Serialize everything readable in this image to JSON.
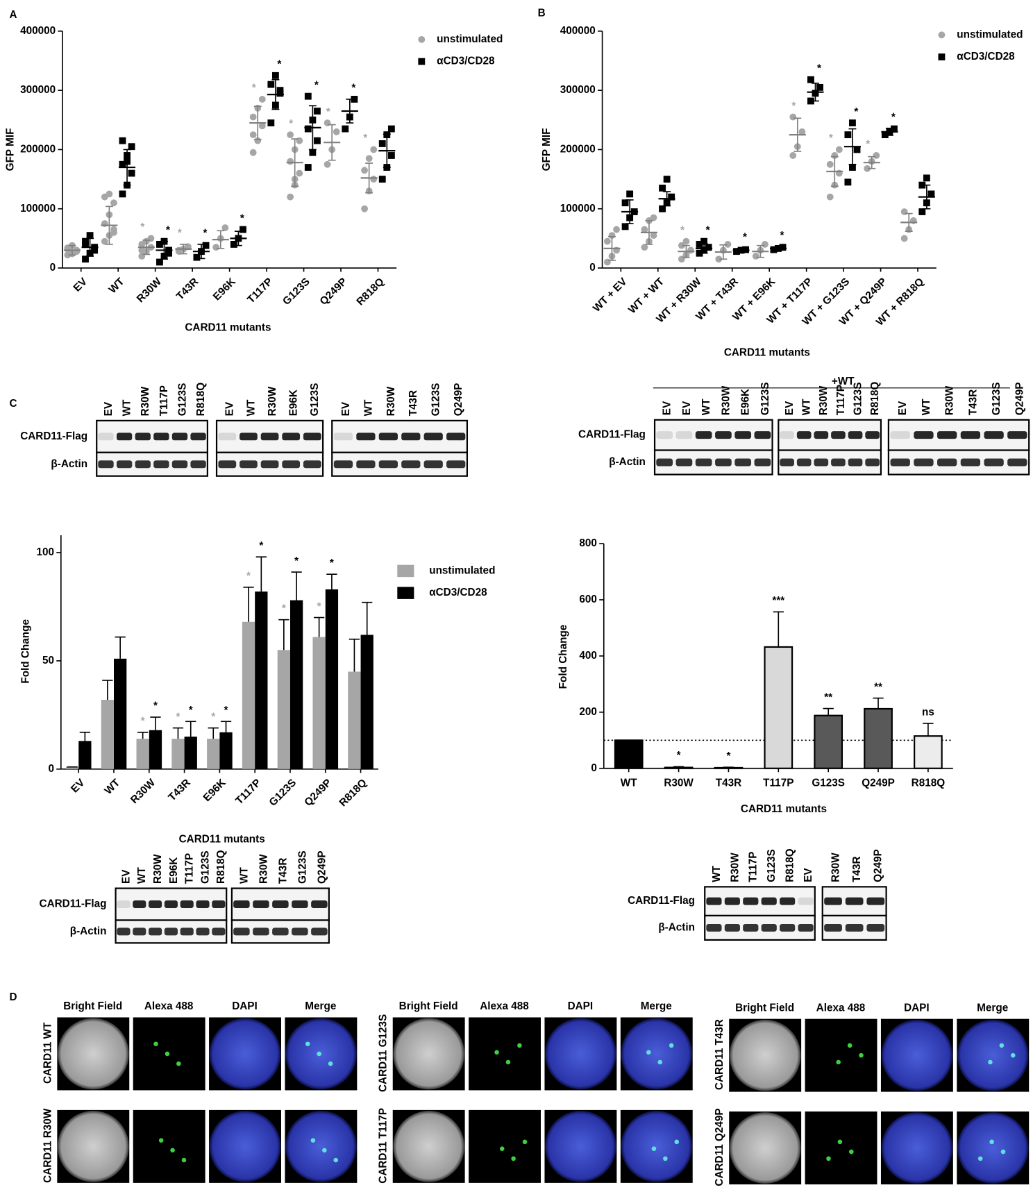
{
  "panel_labels": [
    "A",
    "B",
    "C",
    "D"
  ],
  "chart_data": [
    {
      "type": "dotplot",
      "ylabel": "GFP MIF",
      "xlabel": "CARD11 mutants",
      "categories": [
        "EV",
        "WT",
        "R30W",
        "T43R",
        "E96K",
        "T117P",
        "G123S",
        "Q249P",
        "R818Q"
      ],
      "ylim": [
        0,
        400000
      ],
      "yticks": [
        0,
        100000,
        200000,
        300000,
        400000
      ],
      "series": [
        {
          "name": "unstimulated",
          "color": "#a6a6a6",
          "values": [
            30000,
            72000,
            35000,
            32000,
            48000,
            245000,
            178000,
            212000,
            152000
          ],
          "errors": [
            8000,
            32000,
            12000,
            8000,
            15000,
            28000,
            40000,
            30000,
            25000
          ],
          "significance": [
            null,
            null,
            "*",
            "*",
            null,
            "*",
            "*",
            "*",
            "*"
          ],
          "points": [
            [
              22000,
              26000,
              30000,
              34000,
              38000,
              28000,
              32000,
              24000
            ],
            [
              45000,
              55000,
              65000,
              75000,
              90000,
              110000,
              120000,
              125000,
              60000
            ],
            [
              20000,
              28000,
              35000,
              40000,
              45000,
              50000,
              30000
            ],
            [
              28000,
              32000,
              36000,
              30000
            ],
            [
              35000,
              50000,
              68000
            ],
            [
              195000,
              215000,
              240000,
              255000,
              270000,
              285000,
              225000
            ],
            [
              120000,
              140000,
              160000,
              180000,
              200000,
              215000,
              225000,
              150000
            ],
            [
              175000,
              200000,
              230000,
              245000
            ],
            [
              100000,
              130000,
              150000,
              165000,
              185000,
              200000
            ]
          ]
        },
        {
          "name": "αCD3/CD28",
          "color": "#000000",
          "values": [
            35000,
            170000,
            30000,
            28000,
            50000,
            293000,
            237000,
            265000,
            198000
          ],
          "errors": [
            15000,
            30000,
            15000,
            12000,
            12000,
            25000,
            37000,
            20000,
            28000
          ],
          "significance": [
            null,
            null,
            "*",
            "*",
            "*",
            "*",
            "*",
            "*",
            null
          ],
          "points": [
            [
              15000,
              25000,
              35000,
              45000,
              55000,
              30000,
              40000
            ],
            [
              125000,
              140000,
              160000,
              175000,
              190000,
              205000,
              215000,
              180000
            ],
            [
              10000,
              20000,
              30000,
              40000,
              45000,
              25000
            ],
            [
              18000,
              28000,
              38000
            ],
            [
              40000,
              50000,
              65000
            ],
            [
              245000,
              275000,
              295000,
              310000,
              325000,
              300000
            ],
            [
              170000,
              195000,
              215000,
              235000,
              250000,
              265000,
              290000
            ],
            [
              235000,
              255000,
              285000
            ],
            [
              150000,
              170000,
              190000,
              210000,
              225000,
              235000
            ]
          ]
        }
      ]
    },
    {
      "type": "dotplot",
      "ylabel": "GFP MIF",
      "xlabel": "CARD11 mutants",
      "categories": [
        "WT + EV",
        "WT + WT",
        "WT + R30W",
        "WT + T43R",
        "WT + E96K",
        "WT + T117P",
        "WT + G123S",
        "WT + Q249P",
        "WT + R818Q"
      ],
      "ylim": [
        0,
        400000
      ],
      "yticks": [
        0,
        100000,
        200000,
        300000,
        400000
      ],
      "series": [
        {
          "name": "unstimulated",
          "color": "#a6a6a6",
          "values": [
            33000,
            60000,
            28000,
            27000,
            28000,
            225000,
            163000,
            178000,
            77000
          ],
          "errors": [
            20000,
            20000,
            10000,
            12000,
            10000,
            28000,
            25000,
            10000,
            15000
          ],
          "significance": [
            null,
            null,
            "*",
            null,
            null,
            "*",
            "*",
            "*",
            null
          ],
          "points": [
            [
              10000,
              20000,
              30000,
              45000,
              55000,
              65000
            ],
            [
              35000,
              45000,
              55000,
              65000,
              80000,
              85000
            ],
            [
              15000,
              22000,
              30000,
              38000,
              45000
            ],
            [
              15000,
              30000,
              40000
            ],
            [
              20000,
              30000,
              40000
            ],
            [
              190000,
              205000,
              230000,
              255000
            ],
            [
              120000,
              140000,
              160000,
              175000,
              190000,
              200000
            ],
            [
              168000,
              180000,
              190000
            ],
            [
              50000,
              65000,
              80000,
              95000
            ]
          ]
        },
        {
          "name": "αCD3/CD28",
          "color": "#000000",
          "values": [
            95000,
            117000,
            33000,
            30000,
            33000,
            297000,
            205000,
            230000,
            120000
          ],
          "errors": [
            20000,
            12000,
            8000,
            3000,
            3000,
            15000,
            30000,
            6000,
            20000
          ],
          "significance": [
            null,
            null,
            "*",
            "*",
            "*",
            "*",
            "*",
            "*",
            null
          ],
          "points": [
            [
              70000,
              85000,
              95000,
              110000,
              125000
            ],
            [
              100000,
              110000,
              120000,
              135000,
              150000
            ],
            [
              25000,
              30000,
              35000,
              40000,
              45000
            ],
            [
              28000,
              30000,
              31000
            ],
            [
              31000,
              33000,
              35000
            ],
            [
              282000,
              295000,
              305000,
              318000
            ],
            [
              145000,
              170000,
              200000,
              225000,
              245000
            ],
            [
              225000,
              230000,
              235000
            ],
            [
              95000,
              110000,
              125000,
              140000,
              152000
            ]
          ]
        }
      ]
    },
    {
      "type": "bar",
      "ylabel": "Fold Change",
      "xlabel": "CARD11 mutants",
      "categories": [
        "EV",
        "WT",
        "R30W",
        "T43R",
        "E96K",
        "T117P",
        "G123S",
        "Q249P",
        "R818Q"
      ],
      "ylim": [
        0,
        108
      ],
      "yticks": [
        0,
        50,
        100
      ],
      "series": [
        {
          "name": "unstimulated",
          "color": "#a6a6a6",
          "values": [
            1,
            32,
            14,
            14,
            14,
            68,
            55,
            61,
            45
          ],
          "errors": [
            0,
            9,
            3,
            5,
            5,
            16,
            14,
            9,
            15
          ],
          "significance": [
            null,
            null,
            "*",
            "*",
            "*",
            "*",
            "*",
            "*",
            null
          ]
        },
        {
          "name": "αCD3/CD28",
          "color": "#000000",
          "values": [
            13,
            51,
            18,
            15,
            17,
            82,
            78,
            83,
            62
          ],
          "errors": [
            4,
            10,
            6,
            7,
            5,
            16,
            13,
            7,
            15
          ],
          "significance": [
            null,
            null,
            "*",
            "*",
            "*",
            "*",
            "*",
            "*",
            null
          ]
        }
      ]
    },
    {
      "type": "bar",
      "ylabel": "Fold Change",
      "xlabel": "CARD11 mutants",
      "categories": [
        "WT",
        "R30W",
        "T43R",
        "T117P",
        "G123S",
        "Q249P",
        "R818Q"
      ],
      "ylim": [
        0,
        800
      ],
      "yticks": [
        0,
        200,
        400,
        600,
        800
      ],
      "reference_line": 100,
      "series": [
        {
          "values": [
            100,
            3,
            2,
            432,
            188,
            212,
            115
          ],
          "errors": [
            0,
            3,
            2,
            125,
            25,
            38,
            45
          ],
          "colors": [
            "#000000",
            "#000000",
            "#000000",
            "#d9d9d9",
            "#595959",
            "#595959",
            "#ececec"
          ],
          "significance": [
            null,
            "*",
            "*",
            "***",
            "**",
            "**",
            "ns"
          ]
        }
      ]
    }
  ],
  "blots": [
    {
      "rows": [
        "CARD11-Flag",
        "β-Actin"
      ],
      "groups": [
        [
          "EV",
          "WT",
          "R30W",
          "T117P",
          "G123S",
          "R818Q"
        ],
        [
          "EV",
          "WT",
          "R30W",
          "E96K",
          "G123S"
        ],
        [
          "EV",
          "WT",
          "R30W",
          "T43R",
          "G123S",
          "Q249P"
        ]
      ]
    },
    {
      "header": "+WT",
      "rows": [
        "CARD11-Flag",
        "β-Actin"
      ],
      "groups": [
        [
          "EV",
          "EV",
          "WT",
          "R30W",
          "E96K",
          "G123S"
        ],
        [
          "EV",
          "WT",
          "R30W",
          "T117P",
          "G123S",
          "R818Q"
        ],
        [
          "EV",
          "WT",
          "R30W",
          "T43R",
          "G123S",
          "Q249P"
        ]
      ]
    },
    {
      "rows": [
        "CARD11-Flag",
        "β-Actin"
      ],
      "groups": [
        [
          "EV",
          "WT",
          "R30W",
          "E96K",
          "T117P",
          "G123S",
          "R818Q"
        ],
        [
          "WT",
          "R30W",
          "T43R",
          "G123S",
          "Q249P"
        ]
      ]
    },
    {
      "rows": [
        "CARD11-Flag",
        "β-Actin"
      ],
      "groups": [
        [
          "WT",
          "R30W",
          "T117P",
          "G123S",
          "R818Q",
          "EV"
        ],
        [
          "R30W",
          "T43R",
          "Q249P"
        ]
      ]
    }
  ],
  "microscopy": [
    {
      "columns": [
        "Bright Field",
        "Alexa 488",
        "DAPI",
        "Merge"
      ],
      "rows": [
        "CARD11 WT",
        "CARD11 R30W"
      ]
    },
    {
      "columns": [
        "Bright Field",
        "Alexa 488",
        "DAPI",
        "Merge"
      ],
      "rows": [
        "CARD11 G123S",
        "CARD11 T117P"
      ]
    },
    {
      "columns": [
        "Bright Field",
        "Alexa 488",
        "DAPI",
        "Merge"
      ],
      "rows": [
        "CARD11 T43R",
        "CARD11 Q249P"
      ]
    }
  ]
}
